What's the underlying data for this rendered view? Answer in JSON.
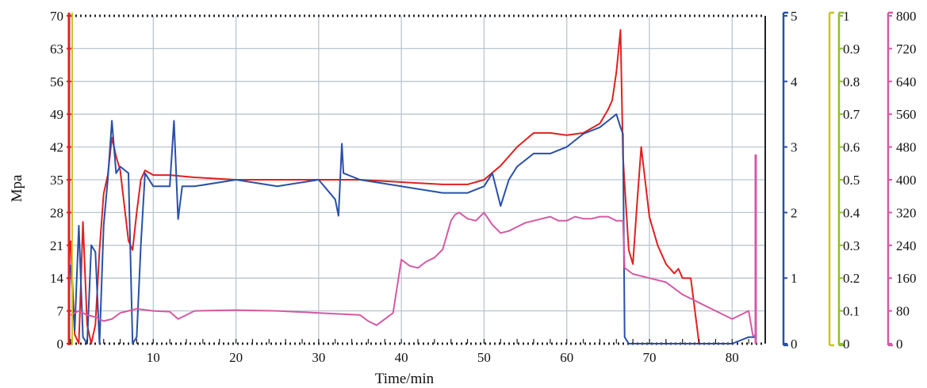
{
  "chart_data": {
    "type": "line",
    "xlabel": "Time/min",
    "xlim": [
      0,
      84
    ],
    "x_ticks": [
      "10",
      "20",
      "30",
      "40",
      "50",
      "60",
      "70",
      "80"
    ],
    "grid": true,
    "axes": [
      {
        "id": "left",
        "label": "Mpa",
        "ticks": [
          "0",
          "7",
          "14",
          "21",
          "28",
          "35",
          "42",
          "49",
          "56",
          "63",
          "70"
        ],
        "range": [
          0,
          70
        ],
        "color": "#e02020"
      },
      {
        "id": "right1",
        "label": "",
        "ticks": [
          "0",
          "1",
          "2",
          "3",
          "4",
          "5"
        ],
        "range": [
          0,
          5
        ],
        "color": "#2850a8"
      },
      {
        "id": "right2",
        "label": "",
        "ticks": [
          "0",
          "0.1",
          "0.2",
          "0.3",
          "0.4",
          "0.5",
          "0.6",
          "0.7",
          "0.8",
          "0.9",
          "1"
        ],
        "range": [
          0,
          1
        ],
        "color": "#8fbf2a"
      },
      {
        "id": "right3",
        "label": "",
        "ticks": [
          "0",
          "80",
          "160",
          "240",
          "320",
          "400",
          "480",
          "560",
          "640",
          "720",
          "800"
        ],
        "range": [
          0,
          800
        ],
        "color": "#d35aa5"
      }
    ],
    "series": [
      {
        "color": "#e02020",
        "axis": "left",
        "x": [
          0,
          0.5,
          1,
          1.5,
          2,
          2.5,
          3,
          3.5,
          4,
          4.5,
          5,
          5.5,
          6,
          7,
          7.5,
          8,
          8.5,
          9,
          10,
          12,
          15,
          20,
          25,
          30,
          35,
          40,
          45,
          48,
          50,
          52,
          54,
          56,
          58,
          60,
          62,
          64,
          65,
          65.5,
          66,
          66.5,
          66.8,
          67,
          67.5,
          68,
          68.5,
          69,
          70,
          71,
          72,
          73,
          73.5,
          74,
          75,
          76,
          77
        ],
        "y": [
          22,
          2,
          0,
          26,
          4,
          0,
          4,
          20,
          32,
          36,
          44,
          40,
          37,
          22,
          20,
          28,
          35,
          37,
          36,
          36,
          35.5,
          35,
          35,
          35,
          35,
          34.5,
          34,
          34,
          35,
          38,
          42,
          45,
          45,
          44.5,
          45,
          47,
          50,
          52,
          58,
          67,
          40,
          34,
          20,
          17,
          30,
          42,
          27,
          21,
          17,
          15,
          16,
          14,
          14,
          0,
          0
        ]
      },
      {
        "color": "#2850a8",
        "axis": "right1",
        "x": [
          0,
          0.5,
          1,
          1.5,
          2,
          2.5,
          3,
          3.5,
          4,
          4.5,
          5,
          5.5,
          6,
          7,
          7.5,
          8,
          8.5,
          9,
          10,
          12,
          12.5,
          13,
          13.5,
          15,
          20,
          25,
          30,
          32,
          32.4,
          32.8,
          33,
          35,
          40,
          45,
          48,
          50,
          51,
          52,
          53,
          54,
          56,
          58,
          60,
          62,
          64,
          65,
          66,
          66.5,
          66.8,
          67,
          67.5,
          68,
          69,
          70,
          80,
          82,
          83
        ],
        "y": [
          1.2,
          0.2,
          1.8,
          0.1,
          0,
          1.5,
          1.4,
          0,
          1.8,
          2.5,
          3.4,
          2.6,
          2.7,
          2.6,
          0,
          0.1,
          1.5,
          2.6,
          2.4,
          2.4,
          3.4,
          1.9,
          2.4,
          2.4,
          2.5,
          2.4,
          2.5,
          2.2,
          1.95,
          3.05,
          2.6,
          2.5,
          2.4,
          2.3,
          2.3,
          2.4,
          2.6,
          2.1,
          2.5,
          2.7,
          2.9,
          2.9,
          3.0,
          3.2,
          3.3,
          3.4,
          3.5,
          3.3,
          3.2,
          0.1,
          0,
          0,
          0,
          0,
          0,
          0.1,
          0.1
        ]
      },
      {
        "color": "#d35aa5",
        "axis": "right3",
        "x": [
          0,
          1,
          2,
          3,
          4,
          5,
          6,
          7,
          8,
          10,
          12,
          13,
          15,
          20,
          25,
          30,
          35,
          36,
          37,
          38,
          39,
          40,
          41,
          42,
          43,
          44,
          45,
          46,
          46.5,
          47,
          48,
          49,
          50,
          51,
          52,
          53,
          54,
          55,
          56,
          57,
          58,
          59,
          60,
          61,
          62,
          63,
          64,
          65,
          66,
          66.8,
          67,
          68,
          70,
          72,
          74,
          76,
          78,
          80,
          82,
          82.5,
          83
        ],
        "y": [
          70,
          80,
          70,
          65,
          55,
          60,
          75,
          80,
          85,
          80,
          78,
          60,
          80,
          82,
          80,
          75,
          70,
          55,
          45,
          60,
          75,
          205,
          190,
          185,
          200,
          210,
          230,
          300,
          315,
          320,
          305,
          300,
          320,
          290,
          270,
          275,
          285,
          295,
          300,
          305,
          310,
          300,
          300,
          310,
          305,
          305,
          310,
          310,
          300,
          300,
          185,
          170,
          160,
          150,
          120,
          100,
          80,
          60,
          80,
          20,
          20
        ]
      },
      {
        "color": "#d35aa5",
        "axis": "right3",
        "x": [
          82.8,
          82.8,
          82.9,
          82.9
        ],
        "y": [
          0,
          460,
          460,
          0
        ]
      }
    ]
  }
}
